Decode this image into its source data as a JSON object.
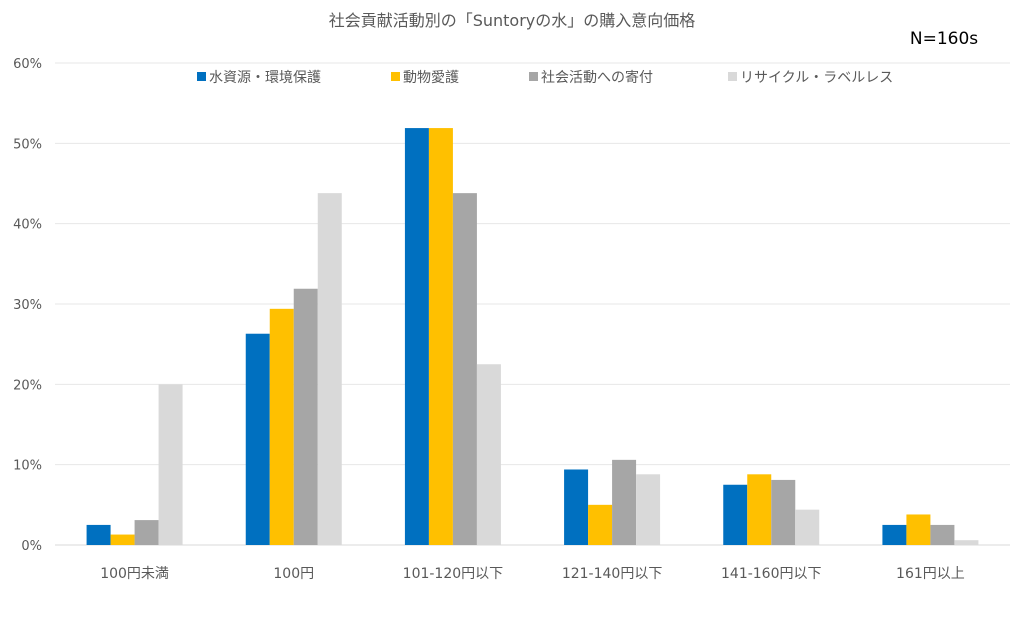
{
  "chart_data": {
    "type": "bar",
    "title": "社会貢献活動別の「Suntoryの水」の購入意向価格",
    "sample_label": "N=160s",
    "xlabel": "",
    "ylabel": "",
    "ylim": [
      0,
      60
    ],
    "y_ticks": [
      0,
      10,
      20,
      30,
      40,
      50,
      60
    ],
    "y_tick_labels": [
      "0%",
      "10%",
      "20%",
      "30%",
      "40%",
      "50%",
      "60%"
    ],
    "grid": true,
    "legend_position": "top",
    "categories": [
      "100円未満",
      "100円",
      "101-120円以下",
      "121-140円以下",
      "141-160円以下",
      "161円以上"
    ],
    "series": [
      {
        "name": "水資源・環境保護",
        "color": "#0070C0",
        "values": [
          2.5,
          26.3,
          51.9,
          9.4,
          7.5,
          2.5
        ]
      },
      {
        "name": "動物愛護",
        "color": "#FFC000",
        "values": [
          1.3,
          29.4,
          51.9,
          5.0,
          8.8,
          3.8
        ]
      },
      {
        "name": "社会活動への寄付",
        "color": "#A6A6A6",
        "values": [
          3.1,
          31.9,
          43.8,
          10.6,
          8.1,
          2.5
        ]
      },
      {
        "name": "リサイクル・ラベルレス",
        "color": "#D9D9D9",
        "values": [
          20.0,
          43.8,
          22.5,
          8.8,
          4.4,
          0.6
        ]
      }
    ]
  }
}
